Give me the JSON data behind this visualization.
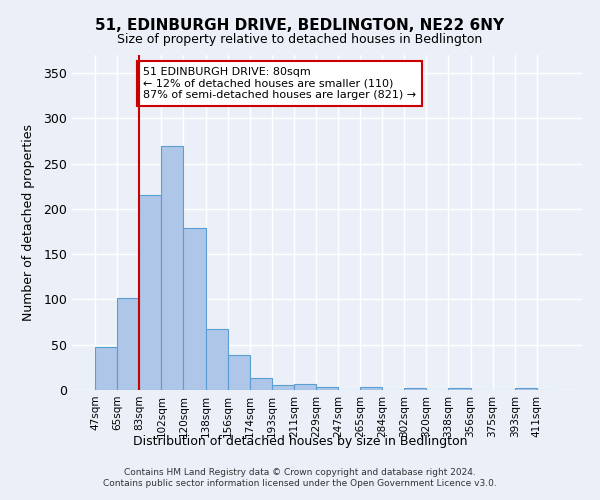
{
  "title": "51, EDINBURGH DRIVE, BEDLINGTON, NE22 6NY",
  "subtitle": "Size of property relative to detached houses in Bedlington",
  "xlabel": "Distribution of detached houses by size in Bedlington",
  "ylabel": "Number of detached properties",
  "bar_labels": [
    "47sqm",
    "65sqm",
    "83sqm",
    "102sqm",
    "120sqm",
    "138sqm",
    "156sqm",
    "174sqm",
    "193sqm",
    "211sqm",
    "229sqm",
    "247sqm",
    "265sqm",
    "284sqm",
    "302sqm",
    "320sqm",
    "338sqm",
    "356sqm",
    "375sqm",
    "393sqm",
    "411sqm"
  ],
  "bar_values": [
    47,
    102,
    215,
    270,
    179,
    67,
    39,
    13,
    5,
    7,
    3,
    0,
    3,
    0,
    2,
    0,
    2,
    0,
    0,
    2,
    0
  ],
  "bar_color": "#aec6e8",
  "bar_edge_color": "#5a9fd4",
  "ylim": [
    0,
    370
  ],
  "yticks": [
    0,
    50,
    100,
    150,
    200,
    250,
    300,
    350
  ],
  "property_line_color": "#cc0000",
  "annotation_text": "51 EDINBURGH DRIVE: 80sqm\n← 12% of detached houses are smaller (110)\n87% of semi-detached houses are larger (821) →",
  "annotation_box_color": "#ffffff",
  "annotation_box_edge": "#cc0000",
  "footer": "Contains HM Land Registry data © Crown copyright and database right 2024.\nContains public sector information licensed under the Open Government Licence v3.0.",
  "bg_color": "#eaeff8",
  "grid_color": "#ffffff",
  "bin_width": 18
}
